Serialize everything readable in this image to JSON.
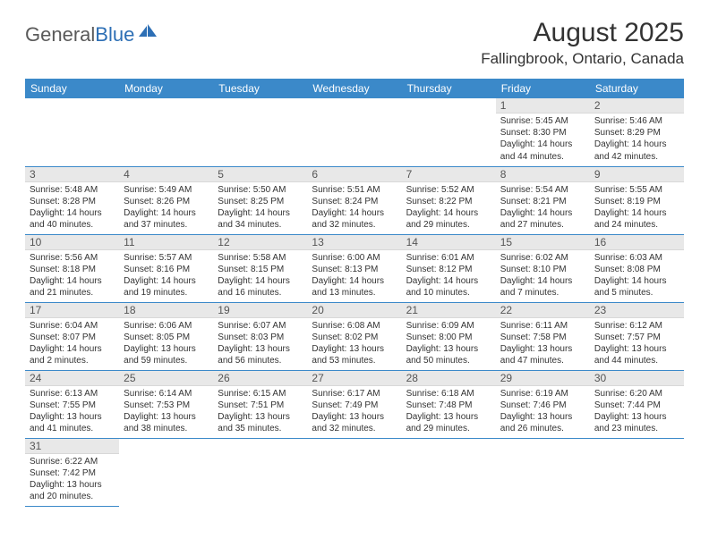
{
  "logo": {
    "part1": "General",
    "part2": "Blue"
  },
  "title": "August 2025",
  "location": "Fallingbrook, Ontario, Canada",
  "colors": {
    "header_bg": "#3b89c9",
    "header_text": "#ffffff",
    "daynum_bg": "#e8e8e8",
    "border": "#3b89c9",
    "logo_gray": "#5a5a5a",
    "logo_blue": "#2d6fb5"
  },
  "weekdays": [
    "Sunday",
    "Monday",
    "Tuesday",
    "Wednesday",
    "Thursday",
    "Friday",
    "Saturday"
  ],
  "cells": [
    {
      "day": "",
      "sunrise": "",
      "sunset": "",
      "daylight": ""
    },
    {
      "day": "",
      "sunrise": "",
      "sunset": "",
      "daylight": ""
    },
    {
      "day": "",
      "sunrise": "",
      "sunset": "",
      "daylight": ""
    },
    {
      "day": "",
      "sunrise": "",
      "sunset": "",
      "daylight": ""
    },
    {
      "day": "",
      "sunrise": "",
      "sunset": "",
      "daylight": ""
    },
    {
      "day": "1",
      "sunrise": "Sunrise: 5:45 AM",
      "sunset": "Sunset: 8:30 PM",
      "daylight": "Daylight: 14 hours and 44 minutes."
    },
    {
      "day": "2",
      "sunrise": "Sunrise: 5:46 AM",
      "sunset": "Sunset: 8:29 PM",
      "daylight": "Daylight: 14 hours and 42 minutes."
    },
    {
      "day": "3",
      "sunrise": "Sunrise: 5:48 AM",
      "sunset": "Sunset: 8:28 PM",
      "daylight": "Daylight: 14 hours and 40 minutes."
    },
    {
      "day": "4",
      "sunrise": "Sunrise: 5:49 AM",
      "sunset": "Sunset: 8:26 PM",
      "daylight": "Daylight: 14 hours and 37 minutes."
    },
    {
      "day": "5",
      "sunrise": "Sunrise: 5:50 AM",
      "sunset": "Sunset: 8:25 PM",
      "daylight": "Daylight: 14 hours and 34 minutes."
    },
    {
      "day": "6",
      "sunrise": "Sunrise: 5:51 AM",
      "sunset": "Sunset: 8:24 PM",
      "daylight": "Daylight: 14 hours and 32 minutes."
    },
    {
      "day": "7",
      "sunrise": "Sunrise: 5:52 AM",
      "sunset": "Sunset: 8:22 PM",
      "daylight": "Daylight: 14 hours and 29 minutes."
    },
    {
      "day": "8",
      "sunrise": "Sunrise: 5:54 AM",
      "sunset": "Sunset: 8:21 PM",
      "daylight": "Daylight: 14 hours and 27 minutes."
    },
    {
      "day": "9",
      "sunrise": "Sunrise: 5:55 AM",
      "sunset": "Sunset: 8:19 PM",
      "daylight": "Daylight: 14 hours and 24 minutes."
    },
    {
      "day": "10",
      "sunrise": "Sunrise: 5:56 AM",
      "sunset": "Sunset: 8:18 PM",
      "daylight": "Daylight: 14 hours and 21 minutes."
    },
    {
      "day": "11",
      "sunrise": "Sunrise: 5:57 AM",
      "sunset": "Sunset: 8:16 PM",
      "daylight": "Daylight: 14 hours and 19 minutes."
    },
    {
      "day": "12",
      "sunrise": "Sunrise: 5:58 AM",
      "sunset": "Sunset: 8:15 PM",
      "daylight": "Daylight: 14 hours and 16 minutes."
    },
    {
      "day": "13",
      "sunrise": "Sunrise: 6:00 AM",
      "sunset": "Sunset: 8:13 PM",
      "daylight": "Daylight: 14 hours and 13 minutes."
    },
    {
      "day": "14",
      "sunrise": "Sunrise: 6:01 AM",
      "sunset": "Sunset: 8:12 PM",
      "daylight": "Daylight: 14 hours and 10 minutes."
    },
    {
      "day": "15",
      "sunrise": "Sunrise: 6:02 AM",
      "sunset": "Sunset: 8:10 PM",
      "daylight": "Daylight: 14 hours and 7 minutes."
    },
    {
      "day": "16",
      "sunrise": "Sunrise: 6:03 AM",
      "sunset": "Sunset: 8:08 PM",
      "daylight": "Daylight: 14 hours and 5 minutes."
    },
    {
      "day": "17",
      "sunrise": "Sunrise: 6:04 AM",
      "sunset": "Sunset: 8:07 PM",
      "daylight": "Daylight: 14 hours and 2 minutes."
    },
    {
      "day": "18",
      "sunrise": "Sunrise: 6:06 AM",
      "sunset": "Sunset: 8:05 PM",
      "daylight": "Daylight: 13 hours and 59 minutes."
    },
    {
      "day": "19",
      "sunrise": "Sunrise: 6:07 AM",
      "sunset": "Sunset: 8:03 PM",
      "daylight": "Daylight: 13 hours and 56 minutes."
    },
    {
      "day": "20",
      "sunrise": "Sunrise: 6:08 AM",
      "sunset": "Sunset: 8:02 PM",
      "daylight": "Daylight: 13 hours and 53 minutes."
    },
    {
      "day": "21",
      "sunrise": "Sunrise: 6:09 AM",
      "sunset": "Sunset: 8:00 PM",
      "daylight": "Daylight: 13 hours and 50 minutes."
    },
    {
      "day": "22",
      "sunrise": "Sunrise: 6:11 AM",
      "sunset": "Sunset: 7:58 PM",
      "daylight": "Daylight: 13 hours and 47 minutes."
    },
    {
      "day": "23",
      "sunrise": "Sunrise: 6:12 AM",
      "sunset": "Sunset: 7:57 PM",
      "daylight": "Daylight: 13 hours and 44 minutes."
    },
    {
      "day": "24",
      "sunrise": "Sunrise: 6:13 AM",
      "sunset": "Sunset: 7:55 PM",
      "daylight": "Daylight: 13 hours and 41 minutes."
    },
    {
      "day": "25",
      "sunrise": "Sunrise: 6:14 AM",
      "sunset": "Sunset: 7:53 PM",
      "daylight": "Daylight: 13 hours and 38 minutes."
    },
    {
      "day": "26",
      "sunrise": "Sunrise: 6:15 AM",
      "sunset": "Sunset: 7:51 PM",
      "daylight": "Daylight: 13 hours and 35 minutes."
    },
    {
      "day": "27",
      "sunrise": "Sunrise: 6:17 AM",
      "sunset": "Sunset: 7:49 PM",
      "daylight": "Daylight: 13 hours and 32 minutes."
    },
    {
      "day": "28",
      "sunrise": "Sunrise: 6:18 AM",
      "sunset": "Sunset: 7:48 PM",
      "daylight": "Daylight: 13 hours and 29 minutes."
    },
    {
      "day": "29",
      "sunrise": "Sunrise: 6:19 AM",
      "sunset": "Sunset: 7:46 PM",
      "daylight": "Daylight: 13 hours and 26 minutes."
    },
    {
      "day": "30",
      "sunrise": "Sunrise: 6:20 AM",
      "sunset": "Sunset: 7:44 PM",
      "daylight": "Daylight: 13 hours and 23 minutes."
    },
    {
      "day": "31",
      "sunrise": "Sunrise: 6:22 AM",
      "sunset": "Sunset: 7:42 PM",
      "daylight": "Daylight: 13 hours and 20 minutes."
    },
    {
      "day": "",
      "sunrise": "",
      "sunset": "",
      "daylight": ""
    },
    {
      "day": "",
      "sunrise": "",
      "sunset": "",
      "daylight": ""
    },
    {
      "day": "",
      "sunrise": "",
      "sunset": "",
      "daylight": ""
    },
    {
      "day": "",
      "sunrise": "",
      "sunset": "",
      "daylight": ""
    },
    {
      "day": "",
      "sunrise": "",
      "sunset": "",
      "daylight": ""
    },
    {
      "day": "",
      "sunrise": "",
      "sunset": "",
      "daylight": ""
    }
  ]
}
